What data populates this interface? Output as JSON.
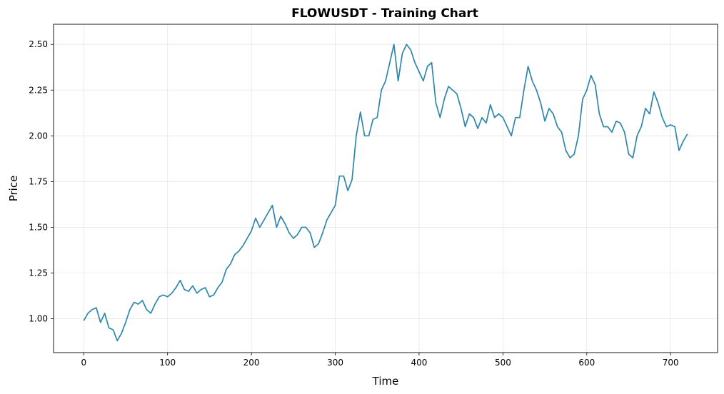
{
  "chart_data": {
    "type": "line",
    "title": "FLOWUSDT - Training Chart",
    "xlabel": "Time",
    "ylabel": "Price",
    "xlim": [
      -36,
      756
    ],
    "ylim": [
      0.815,
      2.61
    ],
    "xticks": [
      0,
      100,
      200,
      300,
      400,
      500,
      600,
      700
    ],
    "yticks": [
      1.0,
      1.25,
      1.5,
      1.75,
      2.0,
      2.25,
      2.5
    ],
    "xtick_labels": [
      "0",
      "100",
      "200",
      "300",
      "400",
      "500",
      "600",
      "700"
    ],
    "ytick_labels": [
      "1.00",
      "1.25",
      "1.50",
      "1.75",
      "2.00",
      "2.25",
      "2.50"
    ],
    "grid": true,
    "legend": "none",
    "line_color": "#2e86ab",
    "series": [
      {
        "x": [
          0,
          5,
          10,
          15,
          20,
          25,
          30,
          35,
          40,
          45,
          50,
          55,
          60,
          65,
          70,
          75,
          80,
          85,
          90,
          95,
          100,
          105,
          110,
          115,
          120,
          125,
          130,
          135,
          140,
          145,
          150,
          155,
          160,
          165,
          170,
          175,
          180,
          185,
          190,
          195,
          200,
          205,
          210,
          215,
          220,
          225,
          230,
          235,
          240,
          245,
          250,
          255,
          260,
          265,
          270,
          275,
          280,
          285,
          290,
          295,
          300,
          305,
          310,
          315,
          320,
          325,
          330,
          335,
          340,
          345,
          350,
          355,
          360,
          365,
          370,
          375,
          380,
          385,
          390,
          395,
          400,
          405,
          410,
          415,
          420,
          425,
          430,
          435,
          440,
          445,
          450,
          455,
          460,
          465,
          470,
          475,
          480,
          485,
          490,
          495,
          500,
          505,
          510,
          515,
          520,
          525,
          530,
          535,
          540,
          545,
          550,
          555,
          560,
          565,
          570,
          575,
          580,
          585,
          590,
          595,
          600,
          605,
          610,
          615,
          620,
          625,
          630,
          635,
          640,
          645,
          650,
          655,
          660,
          665,
          670,
          675,
          680,
          685,
          690,
          695,
          700,
          705,
          710,
          715,
          720
        ],
        "y": [
          0.99,
          1.03,
          1.05,
          1.06,
          0.98,
          1.03,
          0.95,
          0.94,
          0.88,
          0.92,
          0.98,
          1.05,
          1.09,
          1.08,
          1.1,
          1.05,
          1.03,
          1.08,
          1.12,
          1.13,
          1.12,
          1.14,
          1.17,
          1.21,
          1.16,
          1.15,
          1.18,
          1.14,
          1.16,
          1.17,
          1.12,
          1.13,
          1.17,
          1.2,
          1.27,
          1.3,
          1.35,
          1.37,
          1.4,
          1.44,
          1.48,
          1.55,
          1.5,
          1.54,
          1.58,
          1.62,
          1.5,
          1.56,
          1.52,
          1.47,
          1.44,
          1.46,
          1.5,
          1.5,
          1.47,
          1.39,
          1.41,
          1.47,
          1.54,
          1.58,
          1.62,
          1.78,
          1.78,
          1.7,
          1.76,
          2.0,
          2.13,
          2.0,
          2.0,
          2.09,
          2.1,
          2.25,
          2.3,
          2.4,
          2.5,
          2.3,
          2.45,
          2.5,
          2.47,
          2.4,
          2.35,
          2.3,
          2.38,
          2.4,
          2.18,
          2.1,
          2.2,
          2.27,
          2.25,
          2.23,
          2.15,
          2.05,
          2.12,
          2.1,
          2.04,
          2.1,
          2.07,
          2.17,
          2.1,
          2.12,
          2.1,
          2.05,
          2.0,
          2.1,
          2.1,
          2.25,
          2.38,
          2.3,
          2.25,
          2.18,
          2.08,
          2.15,
          2.12,
          2.05,
          2.02,
          1.92,
          1.88,
          1.9,
          2.0,
          2.2,
          2.25,
          2.33,
          2.28,
          2.12,
          2.05,
          2.05,
          2.02,
          2.08,
          2.07,
          2.02,
          1.9,
          1.88,
          2.0,
          2.05,
          2.15,
          2.12,
          2.24,
          2.18,
          2.1,
          2.05,
          2.06,
          2.05,
          1.92,
          1.97,
          2.01
        ]
      }
    ]
  }
}
